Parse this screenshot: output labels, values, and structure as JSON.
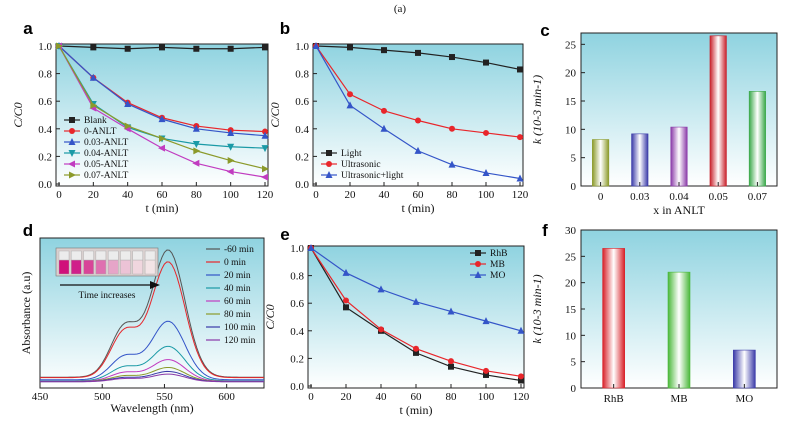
{
  "figure_title": "(a)",
  "chart_data": [
    {
      "panel": "a",
      "type": "line",
      "xlabel": "t (min)",
      "ylabel": "C/C0",
      "xlim": [
        0,
        120
      ],
      "ylim": [
        0,
        1.0
      ],
      "xticks": [
        0,
        20,
        40,
        60,
        80,
        100,
        120
      ],
      "yticks": [
        0.0,
        0.2,
        0.4,
        0.6,
        0.8,
        1.0
      ],
      "legend": "lower-left",
      "series": [
        {
          "name": "Blank",
          "color": "#222222",
          "marker": "square",
          "x": [
            0,
            20,
            40,
            60,
            80,
            100,
            120
          ],
          "y": [
            1.0,
            0.99,
            0.98,
            0.99,
            0.98,
            0.98,
            0.99
          ]
        },
        {
          "name": "0-ANLT",
          "color": "#e8262b",
          "marker": "circle",
          "x": [
            0,
            20,
            40,
            60,
            80,
            100,
            120
          ],
          "y": [
            1.0,
            0.77,
            0.59,
            0.48,
            0.42,
            0.39,
            0.38
          ]
        },
        {
          "name": "0.03-ANLT",
          "color": "#3455c8",
          "marker": "triangle",
          "x": [
            0,
            20,
            40,
            60,
            80,
            100,
            120
          ],
          "y": [
            1.0,
            0.77,
            0.58,
            0.47,
            0.4,
            0.37,
            0.35
          ]
        },
        {
          "name": "0.04-ANLT",
          "color": "#1a9aa6",
          "marker": "triangle-down",
          "x": [
            0,
            20,
            40,
            60,
            80,
            100,
            120
          ],
          "y": [
            1.0,
            0.58,
            0.41,
            0.33,
            0.29,
            0.27,
            0.26
          ]
        },
        {
          "name": "0.05-ANLT",
          "color": "#c13cc0",
          "marker": "triangle-left",
          "x": [
            0,
            20,
            40,
            60,
            80,
            100,
            120
          ],
          "y": [
            1.0,
            0.55,
            0.4,
            0.26,
            0.15,
            0.09,
            0.05
          ]
        },
        {
          "name": "0.07-ANLT",
          "color": "#8b9a2a",
          "marker": "triangle-right",
          "x": [
            0,
            20,
            40,
            60,
            80,
            100,
            120
          ],
          "y": [
            1.0,
            0.57,
            0.42,
            0.33,
            0.24,
            0.17,
            0.11
          ]
        }
      ]
    },
    {
      "panel": "b",
      "type": "line",
      "xlabel": "t (min)",
      "ylabel": "C/C0",
      "xlim": [
        0,
        120
      ],
      "ylim": [
        0,
        1.0
      ],
      "xticks": [
        0,
        20,
        40,
        60,
        80,
        100,
        120
      ],
      "yticks": [
        0.0,
        0.2,
        0.4,
        0.6,
        0.8,
        1.0
      ],
      "legend": "lower-left",
      "series": [
        {
          "name": "Light",
          "color": "#222222",
          "marker": "square",
          "x": [
            0,
            20,
            40,
            60,
            80,
            100,
            120
          ],
          "y": [
            1.0,
            0.99,
            0.97,
            0.95,
            0.92,
            0.88,
            0.83
          ]
        },
        {
          "name": "Ultrasonic",
          "color": "#e8262b",
          "marker": "circle",
          "x": [
            0,
            20,
            40,
            60,
            80,
            100,
            120
          ],
          "y": [
            1.0,
            0.65,
            0.53,
            0.46,
            0.4,
            0.37,
            0.34
          ]
        },
        {
          "name": "Ultrasonic+light",
          "color": "#3455c8",
          "marker": "triangle",
          "x": [
            0,
            20,
            40,
            60,
            80,
            100,
            120
          ],
          "y": [
            1.0,
            0.57,
            0.4,
            0.24,
            0.14,
            0.08,
            0.04
          ]
        }
      ]
    },
    {
      "panel": "c",
      "type": "bar",
      "xlabel": "x in ANLT",
      "ylabel": "k (10-3 min-1)",
      "ylim": [
        0,
        27
      ],
      "yticks": [
        0,
        5,
        10,
        15,
        20,
        25
      ],
      "categories": [
        "0",
        "0.03",
        "0.04",
        "0.05",
        "0.07"
      ],
      "values": [
        8.2,
        9.2,
        10.4,
        26.5,
        16.7
      ],
      "colors": [
        "#8b9a2a",
        "#3a3aa8",
        "#8a3aa8",
        "#c8202a",
        "#3aa84a"
      ]
    },
    {
      "panel": "d",
      "type": "line",
      "xlabel": "Wavelength (nm)",
      "ylabel": "Absorbance (a.u)",
      "xlim": [
        450,
        630
      ],
      "xticks": [
        450,
        500,
        550,
        600
      ],
      "inset_label": "Time increases",
      "legend": "upper-right",
      "series": [
        {
          "name": "-60 min",
          "color": "#555555",
          "peak": 1.0
        },
        {
          "name": "0 min",
          "color": "#e8262b",
          "peak": 0.91
        },
        {
          "name": "20 min",
          "color": "#3455c8",
          "peak": 0.46
        },
        {
          "name": "40 min",
          "color": "#1a9aa6",
          "peak": 0.27
        },
        {
          "name": "60 min",
          "color": "#c13cc0",
          "peak": 0.17
        },
        {
          "name": "80 min",
          "color": "#8b9a2a",
          "peak": 0.11
        },
        {
          "name": "100 min",
          "color": "#3a3aa8",
          "peak": 0.08
        },
        {
          "name": "120 min",
          "color": "#8a3aa8",
          "peak": 0.06
        }
      ]
    },
    {
      "panel": "e",
      "type": "line",
      "xlabel": "t (min)",
      "ylabel": "C/C0",
      "xlim": [
        0,
        120
      ],
      "ylim": [
        0,
        1.0
      ],
      "xticks": [
        0,
        20,
        40,
        60,
        80,
        100,
        120
      ],
      "yticks": [
        0.0,
        0.2,
        0.4,
        0.6,
        0.8,
        1.0
      ],
      "legend": "upper-right",
      "series": [
        {
          "name": "RhB",
          "color": "#222222",
          "marker": "square",
          "x": [
            0,
            20,
            40,
            60,
            80,
            100,
            120
          ],
          "y": [
            1.0,
            0.57,
            0.4,
            0.24,
            0.14,
            0.08,
            0.04
          ]
        },
        {
          "name": "MB",
          "color": "#e8262b",
          "marker": "circle",
          "x": [
            0,
            20,
            40,
            60,
            80,
            100,
            120
          ],
          "y": [
            1.0,
            0.62,
            0.41,
            0.27,
            0.18,
            0.11,
            0.07
          ]
        },
        {
          "name": "MO",
          "color": "#3455c8",
          "marker": "triangle",
          "x": [
            0,
            20,
            40,
            60,
            80,
            100,
            120
          ],
          "y": [
            1.0,
            0.82,
            0.7,
            0.61,
            0.54,
            0.47,
            0.4
          ]
        }
      ]
    },
    {
      "panel": "f",
      "type": "bar",
      "ylabel": "k (10-3 min-1)",
      "ylim": [
        0,
        30
      ],
      "yticks": [
        0,
        5,
        10,
        15,
        20,
        25,
        30
      ],
      "categories": [
        "RhB",
        "MB",
        "MO"
      ],
      "values": [
        26.5,
        22.0,
        7.2
      ],
      "colors": [
        "#d82028",
        "#4ab83a",
        "#3a3aa8"
      ]
    }
  ],
  "bg": {
    "top": "#8fd3e0",
    "bottom": "#ffffff"
  }
}
